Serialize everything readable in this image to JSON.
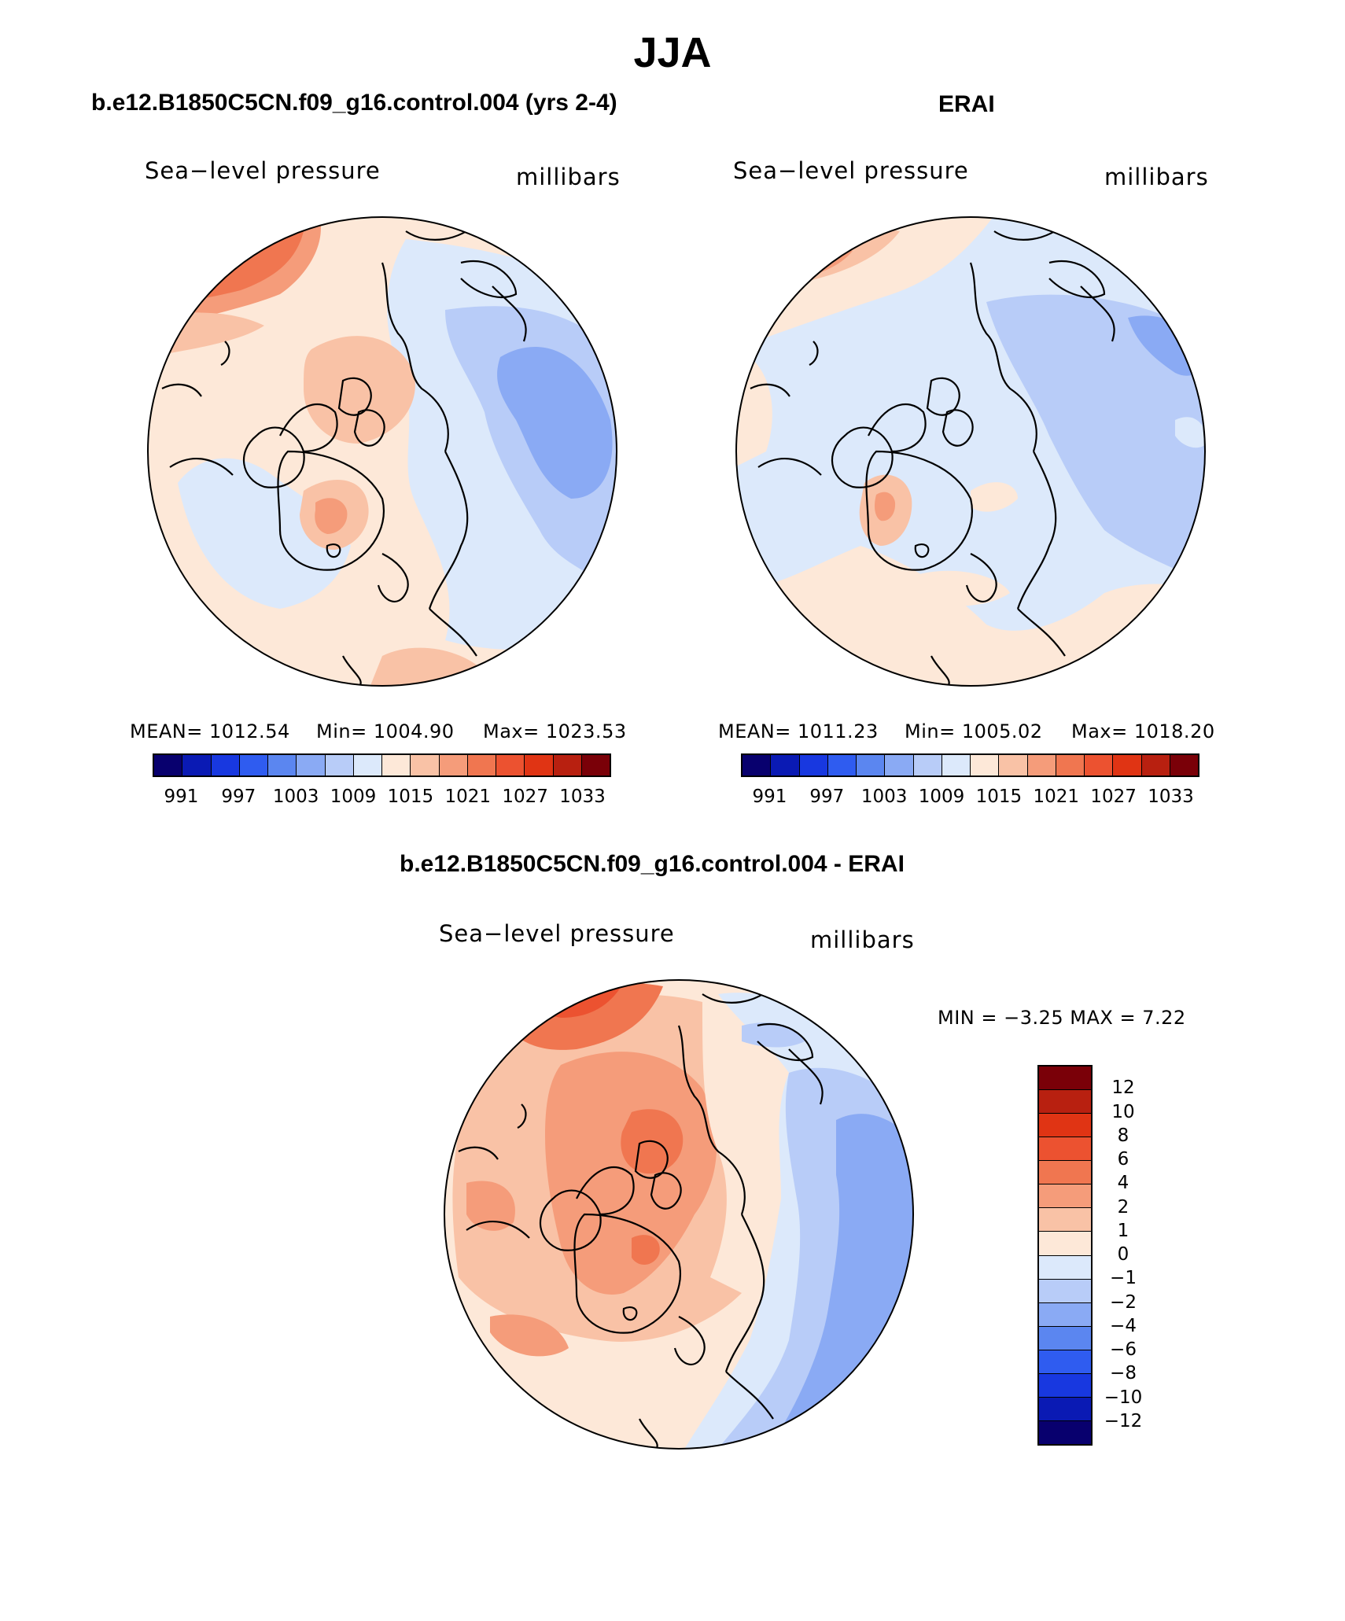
{
  "title": "JJA",
  "panels": [
    {
      "title": "b.e12.B1850C5CN.f09_g16.control.004 (yrs 2-4)",
      "left_label": "Sea−level pressure",
      "right_label": "millibars",
      "stats": {
        "mean": "MEAN=  1012.54",
        "min": "Min=  1004.90",
        "max": "Max=  1023.53"
      },
      "colorbar_ticks": [
        "991",
        "997",
        "1003",
        "1009",
        "1015",
        "1021",
        "1027",
        "1033"
      ]
    },
    {
      "title": "ERAI",
      "left_label": "Sea−level pressure",
      "right_label": "millibars",
      "stats": {
        "mean": "MEAN=  1011.23",
        "min": "Min=  1005.02",
        "max": "Max=  1018.20"
      },
      "colorbar_ticks": [
        "991",
        "997",
        "1003",
        "1009",
        "1015",
        "1021",
        "1027",
        "1033"
      ]
    },
    {
      "title": "b.e12.B1850C5CN.f09_g16.control.004 - ERAI",
      "left_label": "Sea−level pressure",
      "right_label": "millibars",
      "stats": {
        "minmax": "MIN =   −3.25  MAX =     7.22"
      },
      "colorbar_ticks": [
        "12",
        "10",
        "8",
        "6",
        "4",
        "2",
        "1",
        "0",
        "−1",
        "−2",
        "−4",
        "−6",
        "−8",
        "−10",
        "−12"
      ]
    }
  ],
  "colors": {
    "abs_scale": [
      "#08006e",
      "#0a1ab4",
      "#1838e0",
      "#2f5cf0",
      "#5b86f0",
      "#8aaaf4",
      "#b8ccf8",
      "#dce9fb",
      "#fde8d8",
      "#f9c2a6",
      "#f59c7a",
      "#f07650",
      "#ec5230",
      "#e03414",
      "#b82010",
      "#7a0008"
    ],
    "diff_scale": [
      "#7a0008",
      "#b82010",
      "#e03414",
      "#ec5230",
      "#f07650",
      "#f59c7a",
      "#f9c2a6",
      "#fde8d8",
      "#dce9fb",
      "#b8ccf8",
      "#8aaaf4",
      "#5b86f0",
      "#2f5cf0",
      "#1838e0",
      "#0a1ab4",
      "#08006e"
    ],
    "coast": "#000000"
  }
}
